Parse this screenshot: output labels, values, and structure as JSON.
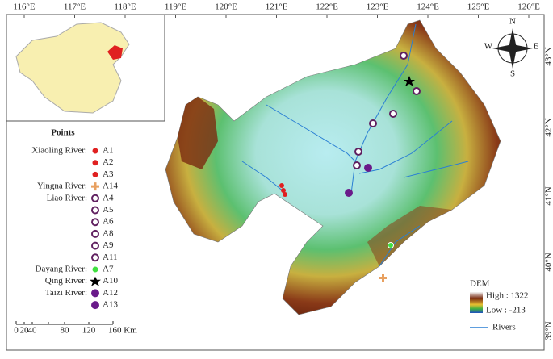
{
  "top_labels": [
    "116°E",
    "117°E",
    "118°E",
    "119°E",
    "120°E",
    "121°E",
    "122°E",
    "123°E",
    "124°E",
    "125°E",
    "126°E"
  ],
  "right_labels": [
    "43°N",
    "42°N",
    "41°N",
    "40°N",
    "39°N"
  ],
  "compass": {
    "n": "N",
    "s": "S",
    "e": "E",
    "w": "W"
  },
  "legend": {
    "title": "Points",
    "groups": [
      {
        "river": "Xiaoling River:",
        "points": [
          "A1",
          "A2",
          "A3"
        ]
      },
      {
        "river": "Yingna River:",
        "points": [
          "A14"
        ]
      },
      {
        "river": "Liao River:",
        "points": [
          "A4",
          "A5",
          "A6",
          "A8",
          "A9",
          "A11"
        ]
      },
      {
        "river": "Dayang River:",
        "points": [
          "A7"
        ]
      },
      {
        "river": "Qing River:",
        "points": [
          "A10"
        ]
      },
      {
        "river": "Taizi River:",
        "points": [
          "A12",
          "A13"
        ]
      }
    ]
  },
  "dem_legend": {
    "title": "DEM",
    "high": "High : 1322",
    "low": "Low : -213",
    "rivers": "Rivers"
  },
  "scale": {
    "labels": [
      "0",
      "20",
      "40",
      "80",
      "120",
      "160 Km"
    ]
  }
}
